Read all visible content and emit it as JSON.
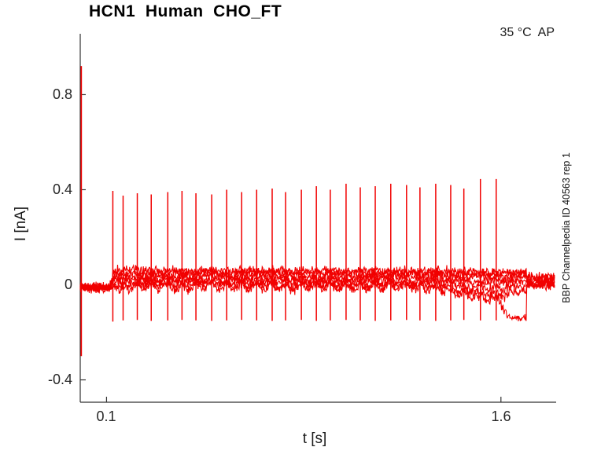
{
  "chart_data": {
    "type": "line",
    "title": "HCN1  Human  CHO_FT",
    "temperature_protocol_note": "35 °C  AP",
    "side_note": "BBP Channelpedia ID 40563 rep 1",
    "xlabel": "t [s]",
    "ylabel": "I [nA]",
    "x_range": [
      0,
      1.81
    ],
    "y_range": [
      -0.494,
      1.056
    ],
    "xticks": [
      {
        "value": 0.1,
        "label": "0.1"
      },
      {
        "value": 1.6,
        "label": "1.6"
      }
    ],
    "yticks": [
      {
        "value": 0.8,
        "label": "0.8"
      },
      {
        "value": 0.4,
        "label": "0.4"
      },
      {
        "value": 0,
        "label": "0"
      },
      {
        "value": -0.4,
        "label": "-0.4"
      }
    ],
    "trace_color": "#f10000",
    "axis_color": "#333333",
    "series_description": "Overlaid HCN1 current sweeps in CHO_FT cell during action-potential (AP) stimulus train; sharp capacitive spikes at each AP",
    "initial_transient": {
      "t": 0.004,
      "peak": 0.92,
      "min": -0.3
    },
    "spikes": [
      [
        0.124,
        0.395,
        -0.155
      ],
      [
        0.163,
        0.375,
        -0.15
      ],
      [
        0.217,
        0.385,
        -0.148
      ],
      [
        0.27,
        0.38,
        -0.152
      ],
      [
        0.333,
        0.39,
        -0.15
      ],
      [
        0.387,
        0.395,
        -0.148
      ],
      [
        0.44,
        0.385,
        -0.15
      ],
      [
        0.5,
        0.38,
        -0.152
      ],
      [
        0.557,
        0.4,
        -0.15
      ],
      [
        0.614,
        0.39,
        -0.148
      ],
      [
        0.671,
        0.4,
        -0.15
      ],
      [
        0.73,
        0.405,
        -0.152
      ],
      [
        0.781,
        0.39,
        -0.15
      ],
      [
        0.841,
        0.4,
        -0.148
      ],
      [
        0.898,
        0.415,
        -0.152
      ],
      [
        0.951,
        0.4,
        -0.15
      ],
      [
        1.011,
        0.425,
        -0.148
      ],
      [
        1.065,
        0.41,
        -0.15
      ],
      [
        1.122,
        0.415,
        -0.152
      ],
      [
        1.181,
        0.425,
        -0.15
      ],
      [
        1.241,
        0.42,
        -0.148
      ],
      [
        1.292,
        0.41,
        -0.15
      ],
      [
        1.352,
        0.425,
        -0.152
      ],
      [
        1.409,
        0.42,
        -0.15
      ],
      [
        1.459,
        0.405,
        -0.148
      ],
      [
        1.522,
        0.445,
        -0.15
      ],
      [
        1.582,
        0.445,
        -0.15
      ]
    ],
    "baseline": {
      "pre_level": -0.012,
      "step_time": 0.107,
      "rise_duration": 0.025,
      "sweep_levels": [
        0.06,
        0.052,
        0.042,
        0.032,
        0.022,
        0.012,
        0.004
      ],
      "dip_per_sweep": [
        0.002,
        0.004,
        0.008,
        0.012,
        0.016,
        0.02,
        0.024
      ],
      "noise_sd": 0.0095,
      "t_end": 1.805,
      "drift": {
        "start": 1.3,
        "amounts": [
          -0.004,
          -0.006,
          -0.01,
          -0.016,
          -0.028,
          -0.042,
          -0.055
        ]
      }
    },
    "end_dip": {
      "sweep": 6,
      "start": 1.585,
      "reach": 1.642,
      "recover": 1.697,
      "bottom": -0.145,
      "post_level": 0.0
    },
    "seed": 40563
  }
}
